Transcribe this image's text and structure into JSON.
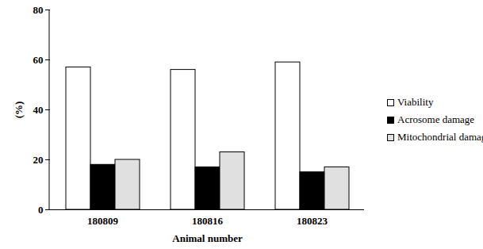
{
  "chart_data": {
    "type": "bar",
    "categories": [
      "180809",
      "180816",
      "180823"
    ],
    "series": [
      {
        "name": "Viability",
        "color": "#ffffff",
        "values": [
          57,
          56,
          59
        ]
      },
      {
        "name": "Acrosome damage",
        "color": "#000000",
        "values": [
          18,
          17,
          15
        ]
      },
      {
        "name": "Mitochondrial damage",
        "color": "#e0e0e0",
        "values": [
          20,
          23,
          17
        ]
      }
    ],
    "x_label": "Animal number",
    "y_label": "(%)",
    "ylim": [
      0,
      80
    ],
    "yticks": [
      0,
      20,
      40,
      60,
      80
    ],
    "legend": "right"
  }
}
